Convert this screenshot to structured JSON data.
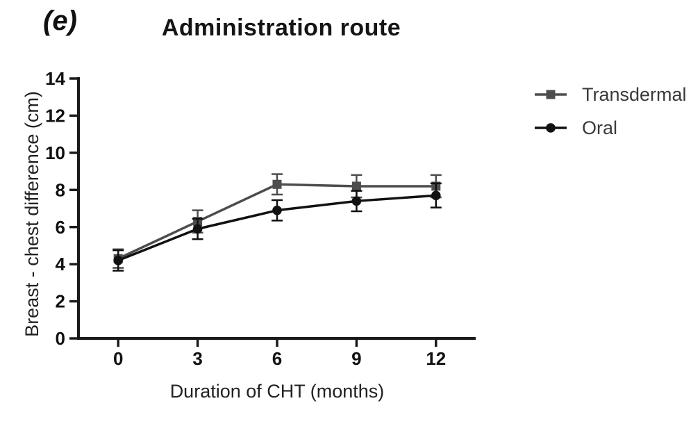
{
  "panel_label": "(e)",
  "colors": {
    "axis": "#1a1a1a",
    "background": "#ffffff",
    "tick_label": "#111111",
    "transdermal": "#4d4d4d",
    "oral": "#111111"
  },
  "chart_data": {
    "type": "line",
    "title": "Administration route",
    "xlabel": "Duration of CHT (months)",
    "ylabel": "Breast - chest difference (cm)",
    "x": [
      0,
      3,
      6,
      9,
      12
    ],
    "xticks": [
      0,
      3,
      6,
      9,
      12
    ],
    "yticks": [
      0,
      2,
      4,
      6,
      8,
      10,
      12,
      14
    ],
    "xlim": [
      -1.5,
      13.5
    ],
    "ylim": [
      0,
      14
    ],
    "grid": false,
    "legend_position": "right",
    "error_bars": true,
    "series": [
      {
        "name": "Transdermal",
        "marker": "square",
        "color": "#4d4d4d",
        "values": [
          4.3,
          6.3,
          8.3,
          8.2,
          8.2
        ],
        "errors": [
          0.5,
          0.6,
          0.55,
          0.6,
          0.6
        ]
      },
      {
        "name": "Oral",
        "marker": "circle",
        "color": "#111111",
        "values": [
          4.2,
          5.9,
          6.9,
          7.4,
          7.7
        ],
        "errors": [
          0.55,
          0.55,
          0.55,
          0.55,
          0.65
        ]
      }
    ]
  }
}
